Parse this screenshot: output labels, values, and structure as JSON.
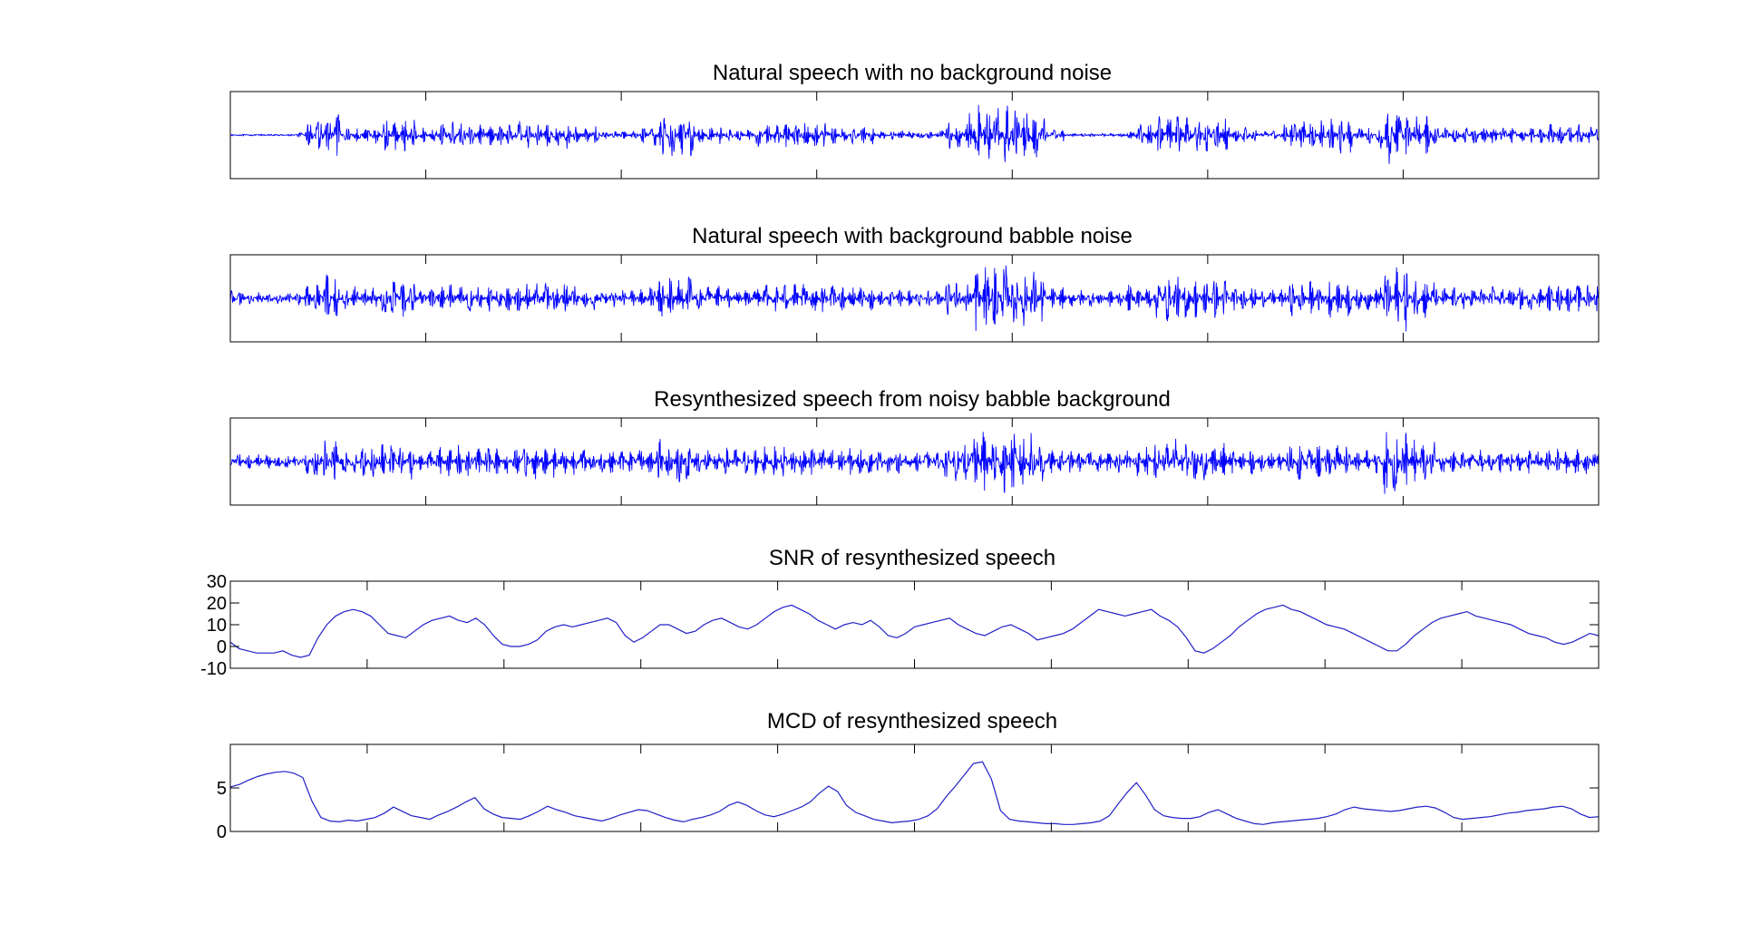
{
  "colors": {
    "background": "#ffffff",
    "axes": "#000000",
    "waveform": "#0000ff",
    "metric_line": "#2020c8"
  },
  "chart_data": [
    {
      "type": "line",
      "title": "Natural speech with no background noise",
      "xlabel": "",
      "ylabel": "",
      "x_ticks": 6,
      "y_tick_labels": [],
      "grid": false,
      "series": [
        {
          "values": []
        }
      ],
      "segments": [
        [
          0.0,
          0.048,
          0.008
        ],
        [
          0.048,
          0.055,
          0.06
        ],
        [
          0.055,
          0.065,
          0.35
        ],
        [
          0.065,
          0.08,
          0.55
        ],
        [
          0.08,
          0.095,
          0.18
        ],
        [
          0.095,
          0.11,
          0.22
        ],
        [
          0.11,
          0.135,
          0.45
        ],
        [
          0.135,
          0.15,
          0.18
        ],
        [
          0.15,
          0.175,
          0.32
        ],
        [
          0.175,
          0.21,
          0.28
        ],
        [
          0.21,
          0.25,
          0.35
        ],
        [
          0.25,
          0.27,
          0.22
        ],
        [
          0.27,
          0.3,
          0.1
        ],
        [
          0.3,
          0.31,
          0.2
        ],
        [
          0.31,
          0.34,
          0.55
        ],
        [
          0.34,
          0.36,
          0.22
        ],
        [
          0.36,
          0.38,
          0.15
        ],
        [
          0.38,
          0.4,
          0.3
        ],
        [
          0.4,
          0.44,
          0.33
        ],
        [
          0.44,
          0.47,
          0.25
        ],
        [
          0.47,
          0.49,
          0.12
        ],
        [
          0.49,
          0.52,
          0.1
        ],
        [
          0.52,
          0.54,
          0.35
        ],
        [
          0.54,
          0.57,
          0.82
        ],
        [
          0.57,
          0.595,
          0.7
        ],
        [
          0.595,
          0.61,
          0.15
        ],
        [
          0.61,
          0.625,
          0.03
        ],
        [
          0.625,
          0.655,
          0.03
        ],
        [
          0.655,
          0.66,
          0.08
        ],
        [
          0.66,
          0.675,
          0.3
        ],
        [
          0.675,
          0.7,
          0.55
        ],
        [
          0.7,
          0.73,
          0.48
        ],
        [
          0.73,
          0.75,
          0.2
        ],
        [
          0.75,
          0.77,
          0.1
        ],
        [
          0.77,
          0.8,
          0.4
        ],
        [
          0.8,
          0.82,
          0.45
        ],
        [
          0.82,
          0.84,
          0.2
        ],
        [
          0.84,
          0.86,
          0.75
        ],
        [
          0.86,
          0.88,
          0.5
        ],
        [
          0.88,
          0.9,
          0.2
        ],
        [
          0.9,
          0.93,
          0.25
        ],
        [
          0.93,
          0.96,
          0.2
        ],
        [
          0.96,
          1.0,
          0.28
        ]
      ]
    },
    {
      "type": "line",
      "title": "Natural speech with background babble noise",
      "xlabel": "",
      "ylabel": "",
      "x_ticks": 6,
      "y_tick_labels": [],
      "grid": false,
      "series": [
        {
          "values": []
        }
      ],
      "segments": [
        [
          0.0,
          0.055,
          0.18
        ],
        [
          0.055,
          0.065,
          0.4
        ],
        [
          0.065,
          0.08,
          0.6
        ],
        [
          0.08,
          0.095,
          0.3
        ],
        [
          0.095,
          0.11,
          0.32
        ],
        [
          0.11,
          0.135,
          0.5
        ],
        [
          0.135,
          0.15,
          0.28
        ],
        [
          0.15,
          0.175,
          0.38
        ],
        [
          0.175,
          0.21,
          0.35
        ],
        [
          0.21,
          0.25,
          0.42
        ],
        [
          0.25,
          0.27,
          0.3
        ],
        [
          0.27,
          0.3,
          0.24
        ],
        [
          0.3,
          0.31,
          0.3
        ],
        [
          0.31,
          0.34,
          0.6
        ],
        [
          0.34,
          0.36,
          0.32
        ],
        [
          0.36,
          0.38,
          0.26
        ],
        [
          0.38,
          0.4,
          0.35
        ],
        [
          0.4,
          0.44,
          0.38
        ],
        [
          0.44,
          0.47,
          0.32
        ],
        [
          0.47,
          0.49,
          0.22
        ],
        [
          0.49,
          0.52,
          0.22
        ],
        [
          0.52,
          0.54,
          0.42
        ],
        [
          0.54,
          0.57,
          0.92
        ],
        [
          0.57,
          0.595,
          0.75
        ],
        [
          0.595,
          0.61,
          0.28
        ],
        [
          0.61,
          0.655,
          0.22
        ],
        [
          0.655,
          0.675,
          0.35
        ],
        [
          0.675,
          0.7,
          0.6
        ],
        [
          0.7,
          0.73,
          0.52
        ],
        [
          0.73,
          0.75,
          0.3
        ],
        [
          0.75,
          0.77,
          0.22
        ],
        [
          0.77,
          0.8,
          0.45
        ],
        [
          0.8,
          0.82,
          0.5
        ],
        [
          0.82,
          0.84,
          0.3
        ],
        [
          0.84,
          0.86,
          0.85
        ],
        [
          0.86,
          0.88,
          0.55
        ],
        [
          0.88,
          0.9,
          0.28
        ],
        [
          0.9,
          0.96,
          0.3
        ],
        [
          0.96,
          1.0,
          0.35
        ]
      ]
    },
    {
      "type": "line",
      "title": "Resynthesized speech from noisy babble background",
      "xlabel": "",
      "ylabel": "",
      "x_ticks": 6,
      "y_tick_labels": [],
      "grid": false,
      "series": [
        {
          "values": []
        }
      ],
      "segments": [
        [
          0.0,
          0.055,
          0.2
        ],
        [
          0.055,
          0.065,
          0.45
        ],
        [
          0.065,
          0.08,
          0.55
        ],
        [
          0.08,
          0.095,
          0.32
        ],
        [
          0.095,
          0.11,
          0.38
        ],
        [
          0.11,
          0.135,
          0.45
        ],
        [
          0.135,
          0.15,
          0.3
        ],
        [
          0.15,
          0.175,
          0.42
        ],
        [
          0.175,
          0.21,
          0.38
        ],
        [
          0.21,
          0.25,
          0.45
        ],
        [
          0.25,
          0.27,
          0.35
        ],
        [
          0.27,
          0.3,
          0.3
        ],
        [
          0.3,
          0.31,
          0.35
        ],
        [
          0.31,
          0.34,
          0.6
        ],
        [
          0.34,
          0.36,
          0.35
        ],
        [
          0.36,
          0.38,
          0.35
        ],
        [
          0.38,
          0.4,
          0.38
        ],
        [
          0.4,
          0.44,
          0.4
        ],
        [
          0.44,
          0.47,
          0.35
        ],
        [
          0.47,
          0.49,
          0.3
        ],
        [
          0.49,
          0.52,
          0.25
        ],
        [
          0.52,
          0.54,
          0.48
        ],
        [
          0.54,
          0.57,
          0.9
        ],
        [
          0.57,
          0.595,
          0.8
        ],
        [
          0.595,
          0.61,
          0.32
        ],
        [
          0.61,
          0.655,
          0.28
        ],
        [
          0.655,
          0.675,
          0.38
        ],
        [
          0.675,
          0.7,
          0.58
        ],
        [
          0.7,
          0.73,
          0.5
        ],
        [
          0.73,
          0.75,
          0.32
        ],
        [
          0.75,
          0.77,
          0.25
        ],
        [
          0.77,
          0.8,
          0.48
        ],
        [
          0.8,
          0.82,
          0.45
        ],
        [
          0.82,
          0.84,
          0.32
        ],
        [
          0.84,
          0.86,
          0.92
        ],
        [
          0.86,
          0.88,
          0.55
        ],
        [
          0.88,
          0.9,
          0.3
        ],
        [
          0.9,
          0.96,
          0.3
        ],
        [
          0.96,
          1.0,
          0.32
        ]
      ]
    },
    {
      "type": "line",
      "title": "SNR of resynthesized speech",
      "xlabel": "",
      "ylabel": "",
      "ylim": [
        -10,
        30
      ],
      "y_tick_labels": [
        "30",
        "20",
        "10",
        "0",
        "-10"
      ],
      "x_ticks": 9,
      "grid": false,
      "series": [
        {
          "values": [
            2,
            -1,
            -2,
            -3,
            -3,
            -3,
            -2,
            -4,
            -5,
            -4,
            4,
            10,
            14,
            16,
            17,
            16,
            14,
            10,
            6,
            5,
            4,
            7,
            10,
            12,
            13,
            14,
            12,
            11,
            13,
            10,
            5,
            1,
            0,
            0,
            1,
            3,
            7,
            9,
            10,
            9,
            10,
            11,
            12,
            13,
            11,
            5,
            2,
            4,
            7,
            10,
            10,
            8,
            6,
            7,
            10,
            12,
            13,
            11,
            9,
            8,
            10,
            13,
            16,
            18,
            19,
            17,
            15,
            12,
            10,
            8,
            10,
            11,
            10,
            12,
            9,
            5,
            4,
            6,
            9,
            10,
            11,
            12,
            13,
            10,
            8,
            6,
            5,
            7,
            9,
            10,
            8,
            6,
            3,
            4,
            5,
            6,
            8,
            11,
            14,
            17,
            16,
            15,
            14,
            15,
            16,
            17,
            14,
            12,
            9,
            4,
            -2,
            -3,
            -1,
            2,
            5,
            9,
            12,
            15,
            17,
            18,
            19,
            17,
            16,
            14,
            12,
            10,
            9,
            8,
            6,
            4,
            2,
            0,
            -2,
            -2,
            1,
            5,
            8,
            11,
            13,
            14,
            15,
            16,
            14,
            13,
            12,
            11,
            10,
            8,
            6,
            5,
            4,
            2,
            1,
            2,
            4,
            6,
            5
          ]
        }
      ]
    },
    {
      "type": "line",
      "title": "MCD of resynthesized speech",
      "xlabel": "",
      "ylabel": "",
      "ylim": [
        0,
        10
      ],
      "y_tick_labels": [
        "5",
        "0"
      ],
      "x_ticks": 9,
      "grid": false,
      "series": [
        {
          "values": [
            5.1,
            5.4,
            5.9,
            6.3,
            6.6,
            6.8,
            6.9,
            6.7,
            6.2,
            3.5,
            1.6,
            1.2,
            1.1,
            1.3,
            1.2,
            1.4,
            1.6,
            2.1,
            2.8,
            2.3,
            1.8,
            1.6,
            1.4,
            1.9,
            2.3,
            2.8,
            3.4,
            3.9,
            2.6,
            2.0,
            1.6,
            1.5,
            1.4,
            1.8,
            2.3,
            2.9,
            2.5,
            2.2,
            1.8,
            1.6,
            1.4,
            1.2,
            1.5,
            1.9,
            2.2,
            2.5,
            2.4,
            2.0,
            1.6,
            1.3,
            1.1,
            1.4,
            1.6,
            1.9,
            2.3,
            3.0,
            3.4,
            3.0,
            2.4,
            1.9,
            1.7,
            2.0,
            2.4,
            2.8,
            3.4,
            4.4,
            5.2,
            4.6,
            3.0,
            2.2,
            1.8,
            1.4,
            1.2,
            1.0,
            1.1,
            1.2,
            1.4,
            1.8,
            2.6,
            4.0,
            5.2,
            6.5,
            7.8,
            8.0,
            6.0,
            2.4,
            1.4,
            1.2,
            1.1,
            1.0,
            0.9,
            0.9,
            0.8,
            0.8,
            0.9,
            1.0,
            1.2,
            1.8,
            3.2,
            4.5,
            5.6,
            4.2,
            2.5,
            1.8,
            1.6,
            1.5,
            1.5,
            1.7,
            2.2,
            2.5,
            2.0,
            1.5,
            1.2,
            0.9,
            0.8,
            1.0,
            1.1,
            1.2,
            1.3,
            1.4,
            1.5,
            1.7,
            2.0,
            2.5,
            2.8,
            2.6,
            2.5,
            2.4,
            2.3,
            2.4,
            2.6,
            2.8,
            2.9,
            2.7,
            2.2,
            1.6,
            1.4,
            1.5,
            1.6,
            1.7,
            1.9,
            2.1,
            2.2,
            2.4,
            2.5,
            2.6,
            2.8,
            2.9,
            2.6,
            2.0,
            1.6,
            1.7
          ]
        }
      ]
    }
  ]
}
